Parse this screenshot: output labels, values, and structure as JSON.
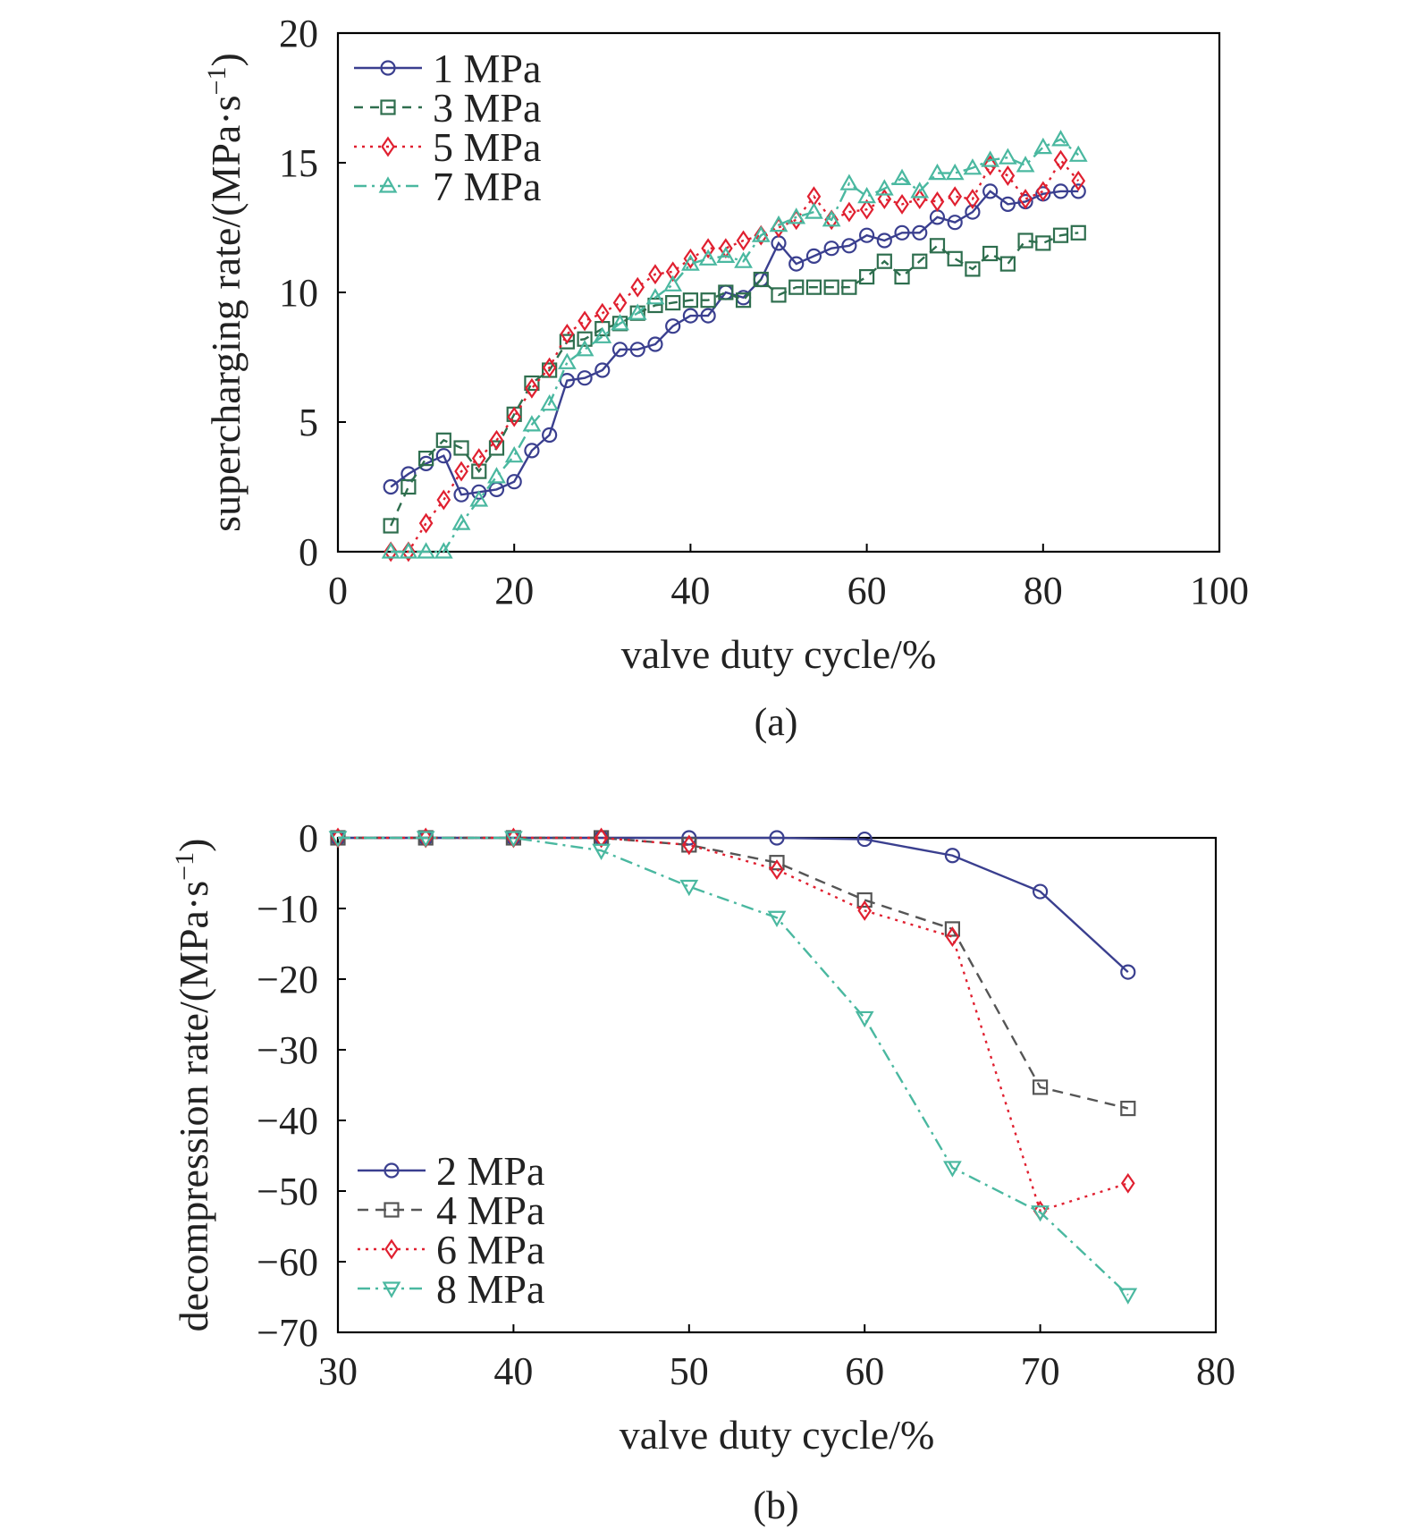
{
  "figure": {
    "panel_a_label": "(a)",
    "panel_b_label": "(b)"
  },
  "colors": {
    "axis": "#000000",
    "text": "#222222"
  },
  "chart_data": [
    {
      "id": "a",
      "type": "line",
      "title": "",
      "xlabel": "valve duty cycle/%",
      "ylabel": "supercharging rate/(MPa·s",
      "ylabel_sup": "−1",
      "ylabel_close": ")",
      "xlim": [
        0,
        100
      ],
      "ylim": [
        0,
        20
      ],
      "xticks": [
        0,
        20,
        40,
        60,
        80,
        100
      ],
      "yticks": [
        0,
        5,
        10,
        15,
        20
      ],
      "legend_position": "top-left",
      "series": [
        {
          "name": "1 MPa",
          "color": "#3a3f8f",
          "marker": "circle",
          "dash": "solid",
          "marker_color": "#3a3f8f",
          "x": [
            6,
            8,
            10,
            12,
            14,
            16,
            18,
            20,
            22,
            24,
            26,
            28,
            30,
            32,
            34,
            36,
            38,
            40,
            42,
            44,
            46,
            48,
            50,
            52,
            54,
            56,
            58,
            60,
            62,
            64,
            66,
            68,
            70,
            72,
            74,
            76,
            78,
            80,
            82,
            84
          ],
          "y": [
            2.5,
            3.0,
            3.4,
            3.7,
            2.2,
            2.3,
            2.4,
            2.7,
            3.9,
            4.5,
            6.6,
            6.7,
            7.0,
            7.8,
            7.8,
            8.0,
            8.7,
            9.1,
            9.1,
            10.0,
            9.8,
            10.5,
            11.9,
            11.1,
            11.4,
            11.7,
            11.8,
            12.2,
            12.0,
            12.3,
            12.3,
            12.9,
            12.7,
            13.1,
            13.9,
            13.4,
            13.5,
            13.8,
            13.9,
            13.9
          ]
        },
        {
          "name": "3 MPa",
          "color": "#2e6e4e",
          "marker": "square",
          "dash": "10,8",
          "marker_color": "#2e6e4e",
          "x": [
            6,
            8,
            10,
            12,
            14,
            16,
            18,
            20,
            22,
            24,
            26,
            28,
            30,
            32,
            34,
            36,
            38,
            40,
            42,
            44,
            46,
            48,
            50,
            52,
            54,
            56,
            58,
            60,
            62,
            64,
            66,
            68,
            70,
            72,
            74,
            76,
            78,
            80,
            82,
            84
          ],
          "y": [
            1.0,
            2.5,
            3.6,
            4.3,
            4.0,
            3.1,
            4.0,
            5.3,
            6.5,
            7.0,
            8.1,
            8.2,
            8.6,
            8.8,
            9.2,
            9.5,
            9.6,
            9.7,
            9.7,
            10.0,
            9.7,
            10.5,
            9.9,
            10.2,
            10.2,
            10.2,
            10.2,
            10.6,
            11.2,
            10.6,
            11.2,
            11.8,
            11.3,
            10.9,
            11.5,
            11.1,
            12.0,
            11.9,
            12.2,
            12.3
          ]
        },
        {
          "name": "5 MPa",
          "color": "#e02030",
          "marker": "diamond",
          "dash": "3,6",
          "marker_color": "#e02030",
          "x": [
            6,
            8,
            10,
            12,
            14,
            16,
            18,
            20,
            22,
            24,
            26,
            28,
            30,
            32,
            34,
            36,
            38,
            40,
            42,
            44,
            46,
            48,
            50,
            52,
            54,
            56,
            58,
            60,
            62,
            64,
            66,
            68,
            70,
            72,
            74,
            76,
            78,
            80,
            82,
            84
          ],
          "y": [
            0,
            0,
            1.1,
            2.0,
            3.1,
            3.6,
            4.3,
            5.2,
            6.3,
            7.1,
            8.4,
            8.9,
            9.2,
            9.6,
            10.2,
            10.7,
            10.8,
            11.3,
            11.7,
            11.7,
            12.0,
            12.2,
            12.5,
            12.8,
            13.7,
            12.8,
            13.1,
            13.2,
            13.6,
            13.4,
            13.6,
            13.5,
            13.7,
            13.6,
            14.9,
            14.5,
            13.6,
            13.9,
            15.1,
            14.3
          ]
        },
        {
          "name": "7 MPa",
          "color": "#4ab8a0",
          "marker": "triangle-up",
          "dash": "14,6,3,6",
          "marker_color": "#4ab8a0",
          "x": [
            6,
            8,
            10,
            12,
            14,
            16,
            18,
            20,
            22,
            24,
            26,
            28,
            30,
            32,
            34,
            36,
            38,
            40,
            42,
            44,
            46,
            48,
            50,
            52,
            54,
            56,
            58,
            60,
            62,
            64,
            66,
            68,
            70,
            72,
            74,
            76,
            78,
            80,
            82,
            84
          ],
          "y": [
            0,
            0,
            0,
            0,
            1.1,
            2.0,
            2.9,
            3.7,
            4.9,
            5.7,
            7.3,
            7.8,
            8.3,
            8.8,
            9.2,
            9.8,
            10.3,
            11.1,
            11.3,
            11.4,
            11.2,
            12.2,
            12.6,
            12.9,
            13.1,
            12.8,
            14.2,
            13.7,
            14.0,
            14.4,
            13.9,
            14.6,
            14.6,
            14.8,
            15.1,
            15.2,
            14.9,
            15.6,
            15.9,
            15.3
          ]
        }
      ]
    },
    {
      "id": "b",
      "type": "line",
      "title": "",
      "xlabel": "valve duty cycle/%",
      "ylabel": "decompression rate/(MPa·s",
      "ylabel_sup": "−1",
      "ylabel_close": ")",
      "xlim": [
        30,
        80
      ],
      "ylim": [
        -70,
        0
      ],
      "xticks": [
        30,
        40,
        50,
        60,
        70,
        80
      ],
      "yticks": [
        0,
        -10,
        -20,
        -30,
        -40,
        -50,
        -60,
        -70
      ],
      "ytick_labels": [
        "0",
        "−10",
        "−20",
        "−30",
        "−40",
        "−50",
        "−60",
        "−70"
      ],
      "legend_position": "bottom-left",
      "series": [
        {
          "name": "2 MPa",
          "color": "#3a3f8f",
          "marker": "circle",
          "dash": "solid",
          "marker_color": "#3a3f8f",
          "x": [
            30,
            35,
            40,
            45,
            50,
            55,
            60,
            65,
            70,
            75
          ],
          "y": [
            0,
            0,
            0,
            0,
            0,
            0,
            -0.2,
            -2.5,
            -7.6,
            -19.0
          ]
        },
        {
          "name": "4 MPa",
          "color": "#555555",
          "marker": "square",
          "dash": "12,8",
          "marker_color": "#555555",
          "x": [
            30,
            35,
            40,
            45,
            50,
            55,
            60,
            65,
            70,
            75
          ],
          "y": [
            0,
            0,
            0,
            0,
            -1.0,
            -3.5,
            -8.8,
            -12.9,
            -35.3,
            -38.3
          ]
        },
        {
          "name": "6 MPa",
          "color": "#e02030",
          "marker": "diamond",
          "dash": "3,6",
          "marker_color": "#e02030",
          "x": [
            30,
            35,
            40,
            45,
            50,
            55,
            60,
            65,
            70,
            75
          ],
          "y": [
            0,
            0,
            0,
            0,
            -1.0,
            -4.5,
            -10.3,
            -14.0,
            -52.8,
            -48.9
          ]
        },
        {
          "name": "8 MPa",
          "color": "#4ab8a0",
          "marker": "triangle-down",
          "dash": "14,6,3,6",
          "marker_color": "#4ab8a0",
          "x": [
            30,
            35,
            40,
            45,
            50,
            55,
            60,
            65,
            70,
            75
          ],
          "y": [
            0,
            0,
            0,
            -1.8,
            -6.9,
            -11.3,
            -25.5,
            -46.7,
            -53.0,
            -64.7
          ]
        }
      ]
    }
  ]
}
